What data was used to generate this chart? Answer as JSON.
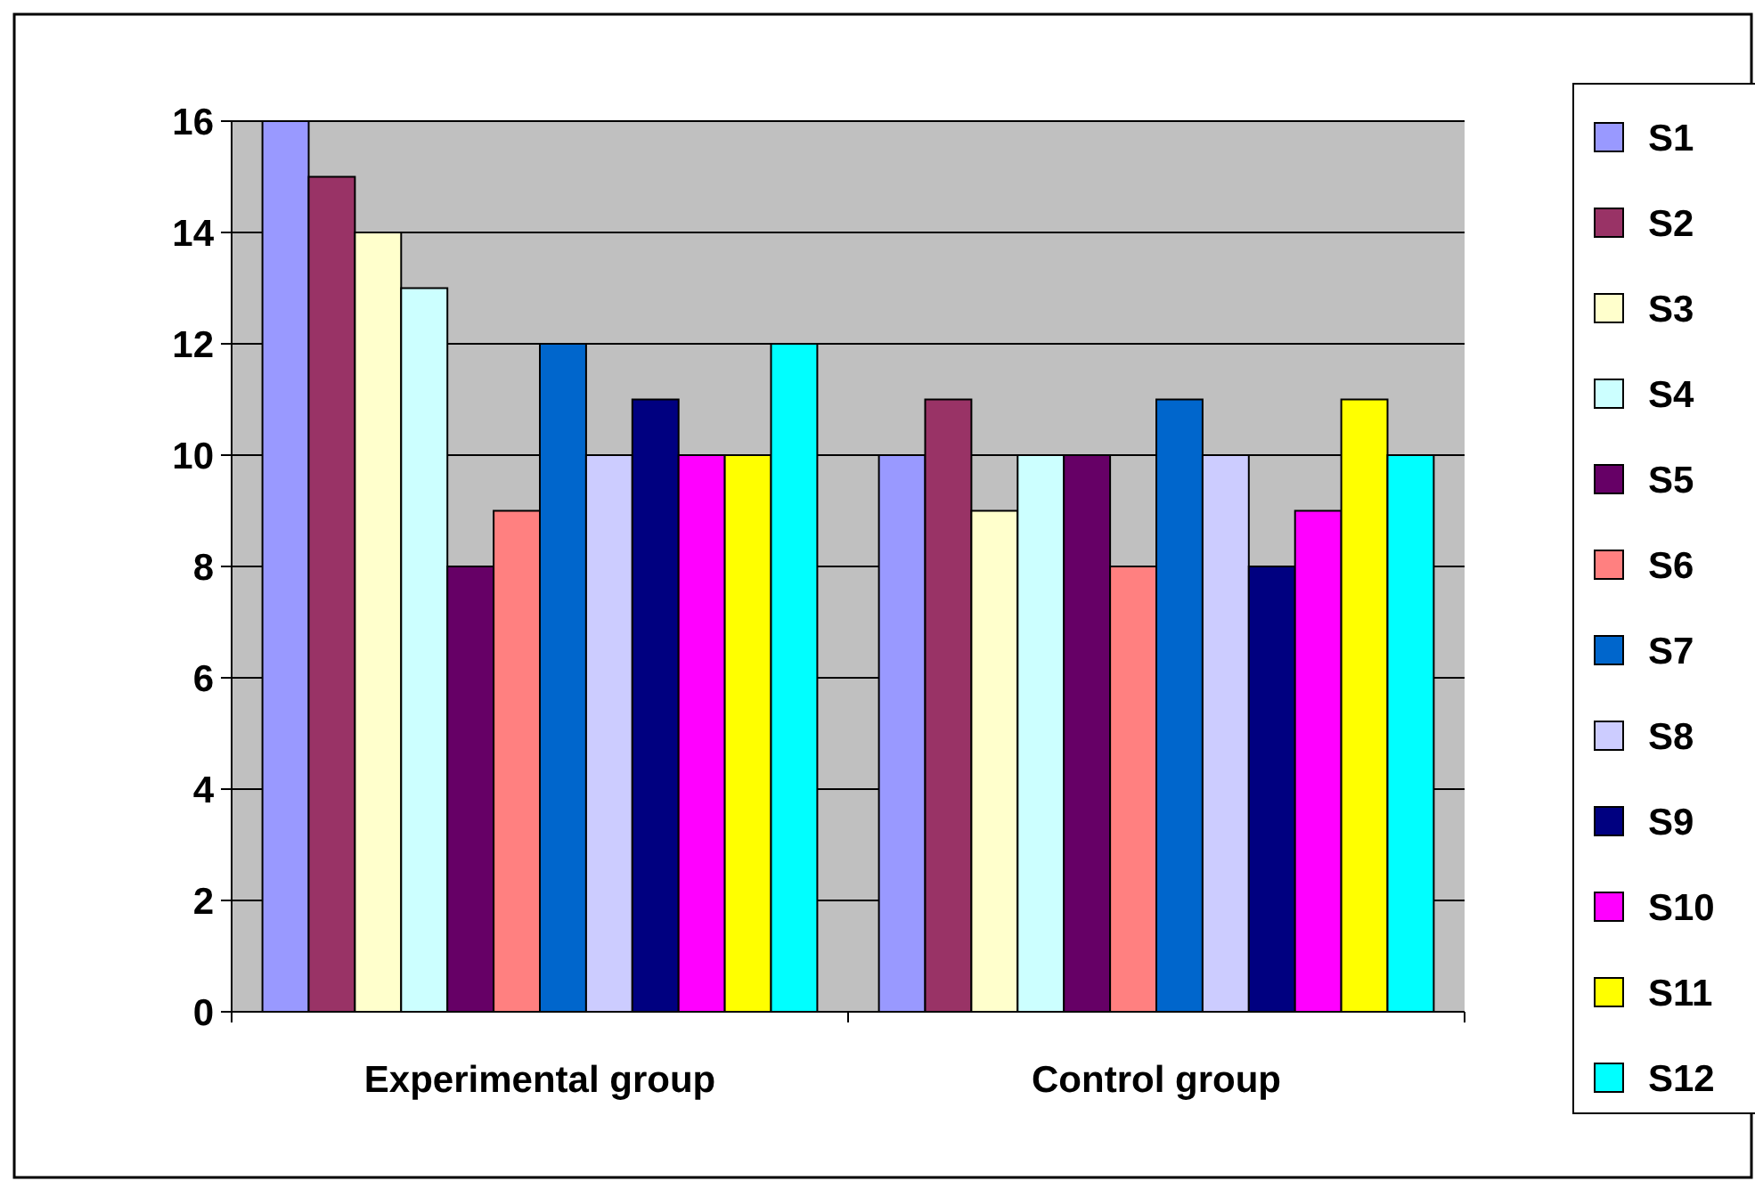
{
  "chart_data": {
    "type": "bar",
    "categories": [
      "Experimental group",
      "Control group"
    ],
    "series": [
      {
        "name": "S1",
        "color": "#9999ff",
        "values": [
          16,
          10
        ]
      },
      {
        "name": "S2",
        "color": "#993366",
        "values": [
          15,
          11
        ]
      },
      {
        "name": "S3",
        "color": "#ffffcc",
        "values": [
          14,
          9
        ]
      },
      {
        "name": "S4",
        "color": "#ccffff",
        "values": [
          13,
          10
        ]
      },
      {
        "name": "S5",
        "color": "#660066",
        "values": [
          8,
          10
        ]
      },
      {
        "name": "S6",
        "color": "#ff8080",
        "values": [
          9,
          8
        ]
      },
      {
        "name": "S7",
        "color": "#0066cc",
        "values": [
          12,
          11
        ]
      },
      {
        "name": "S8",
        "color": "#ccccff",
        "values": [
          10,
          10
        ]
      },
      {
        "name": "S9",
        "color": "#000080",
        "values": [
          11,
          8
        ]
      },
      {
        "name": "S10",
        "color": "#ff00ff",
        "values": [
          10,
          9
        ]
      },
      {
        "name": "S11",
        "color": "#ffff00",
        "values": [
          10,
          11
        ]
      },
      {
        "name": "S12",
        "color": "#00ffff",
        "values": [
          12,
          10
        ]
      }
    ],
    "ylim": [
      0,
      16
    ],
    "yticks": [
      0,
      2,
      4,
      6,
      8,
      10,
      12,
      14,
      16
    ],
    "grid": "y",
    "legend": "right"
  }
}
